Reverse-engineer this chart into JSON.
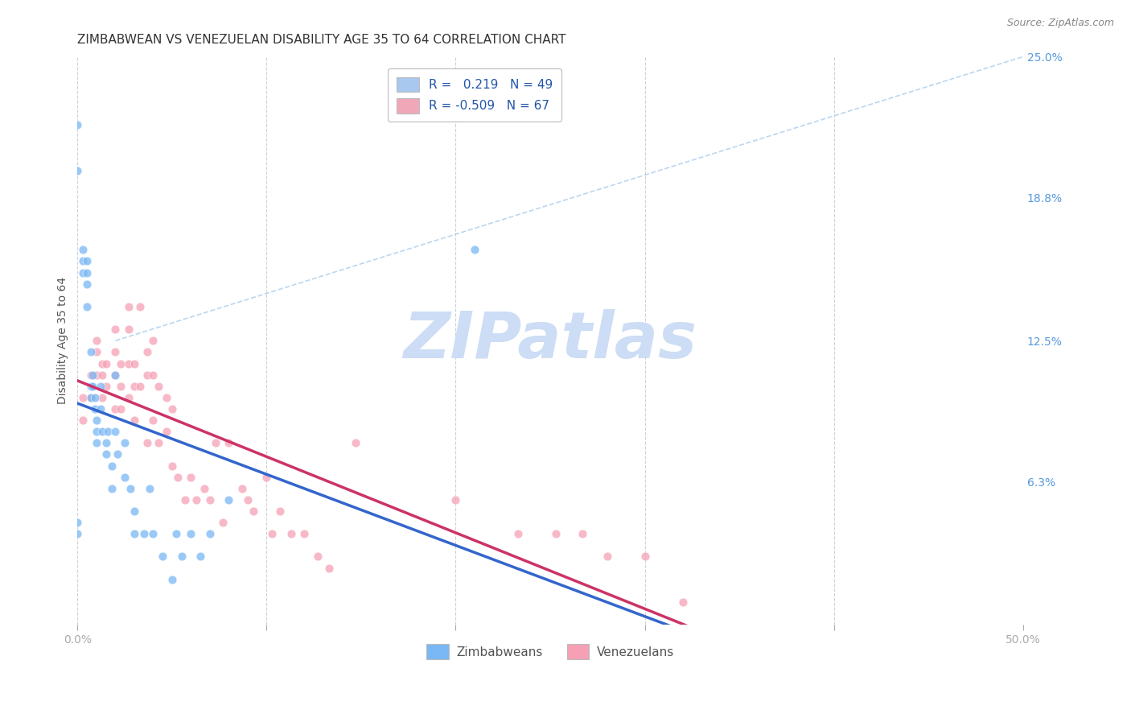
{
  "title": "ZIMBABWEAN VS VENEZUELAN DISABILITY AGE 35 TO 64 CORRELATION CHART",
  "source": "Source: ZipAtlas.com",
  "ylabel": "Disability Age 35 to 64",
  "xlim": [
    0.0,
    50.0
  ],
  "ylim": [
    0.0,
    25.0
  ],
  "xtick_vals": [
    0.0,
    10.0,
    20.0,
    30.0,
    40.0,
    50.0
  ],
  "xticklabels": [
    "0.0%",
    "",
    "",
    "",
    "",
    "50.0%"
  ],
  "ytick_right_values": [
    25.0,
    18.8,
    12.5,
    6.3,
    0.0
  ],
  "ytick_right_labels": [
    "25.0%",
    "18.8%",
    "12.5%",
    "6.3%",
    ""
  ],
  "legend_entries": [
    {
      "label": "R =   0.219   N = 49",
      "color": "#a8c8f0"
    },
    {
      "label": "R = -0.509   N = 67",
      "color": "#f0a8b8"
    }
  ],
  "watermark": "ZIPatlas",
  "background_color": "#ffffff",
  "grid_color": "#cccccc",
  "zim_color": "#7ab8f5",
  "zim_line_color": "#3366cc",
  "ven_color": "#f5a0b5",
  "ven_line_color": "#cc3366",
  "scatter_size": 60,
  "scatter_alpha": 0.75,
  "title_fontsize": 11,
  "axis_label_fontsize": 10,
  "tick_fontsize": 10,
  "watermark_color": "#ccddf5",
  "watermark_fontsize": 58,
  "zim_scatter_x": [
    0.0,
    0.0,
    0.0,
    0.0,
    0.3,
    0.3,
    0.3,
    0.5,
    0.5,
    0.5,
    0.5,
    0.7,
    0.7,
    0.7,
    0.8,
    0.8,
    0.9,
    0.9,
    1.0,
    1.0,
    1.0,
    1.2,
    1.2,
    1.3,
    1.5,
    1.5,
    1.6,
    1.8,
    1.8,
    2.0,
    2.0,
    2.1,
    2.5,
    2.5,
    2.8,
    3.0,
    3.0,
    3.5,
    3.8,
    4.0,
    4.5,
    5.0,
    5.2,
    5.5,
    6.0,
    6.5,
    7.0,
    8.0,
    21.0
  ],
  "zim_scatter_y": [
    22.0,
    20.0,
    4.5,
    4.0,
    16.5,
    16.0,
    15.5,
    16.0,
    15.5,
    15.0,
    14.0,
    12.0,
    10.5,
    10.0,
    11.0,
    10.5,
    10.0,
    9.5,
    9.0,
    8.5,
    8.0,
    10.5,
    9.5,
    8.5,
    8.0,
    7.5,
    8.5,
    7.0,
    6.0,
    11.0,
    8.5,
    7.5,
    8.0,
    6.5,
    6.0,
    4.0,
    5.0,
    4.0,
    6.0,
    4.0,
    3.0,
    2.0,
    4.0,
    3.0,
    4.0,
    3.0,
    4.0,
    5.5,
    16.5
  ],
  "ven_scatter_x": [
    0.3,
    0.3,
    0.7,
    0.7,
    1.0,
    1.0,
    1.0,
    1.3,
    1.3,
    1.3,
    1.5,
    1.5,
    2.0,
    2.0,
    2.0,
    2.0,
    2.3,
    2.3,
    2.3,
    2.7,
    2.7,
    2.7,
    2.7,
    3.0,
    3.0,
    3.0,
    3.3,
    3.3,
    3.7,
    3.7,
    3.7,
    4.0,
    4.0,
    4.0,
    4.3,
    4.3,
    4.7,
    4.7,
    5.0,
    5.0,
    5.3,
    5.7,
    6.0,
    6.3,
    6.7,
    7.0,
    7.3,
    7.7,
    8.0,
    8.7,
    9.0,
    9.3,
    10.0,
    10.3,
    10.7,
    11.3,
    12.0,
    12.7,
    13.3,
    14.7,
    20.0,
    23.3,
    25.3,
    26.7,
    28.0,
    30.0,
    32.0
  ],
  "ven_scatter_y": [
    10.0,
    9.0,
    11.0,
    10.0,
    12.5,
    12.0,
    11.0,
    11.5,
    11.0,
    10.0,
    11.5,
    10.5,
    13.0,
    12.0,
    11.0,
    9.5,
    11.5,
    10.5,
    9.5,
    14.0,
    13.0,
    11.5,
    10.0,
    11.5,
    10.5,
    9.0,
    14.0,
    10.5,
    12.0,
    11.0,
    8.0,
    12.5,
    11.0,
    9.0,
    10.5,
    8.0,
    10.0,
    8.5,
    9.5,
    7.0,
    6.5,
    5.5,
    6.5,
    5.5,
    6.0,
    5.5,
    8.0,
    4.5,
    8.0,
    6.0,
    5.5,
    5.0,
    6.5,
    4.0,
    5.0,
    4.0,
    4.0,
    3.0,
    2.5,
    8.0,
    5.5,
    4.0,
    4.0,
    4.0,
    3.0,
    3.0,
    1.0
  ]
}
